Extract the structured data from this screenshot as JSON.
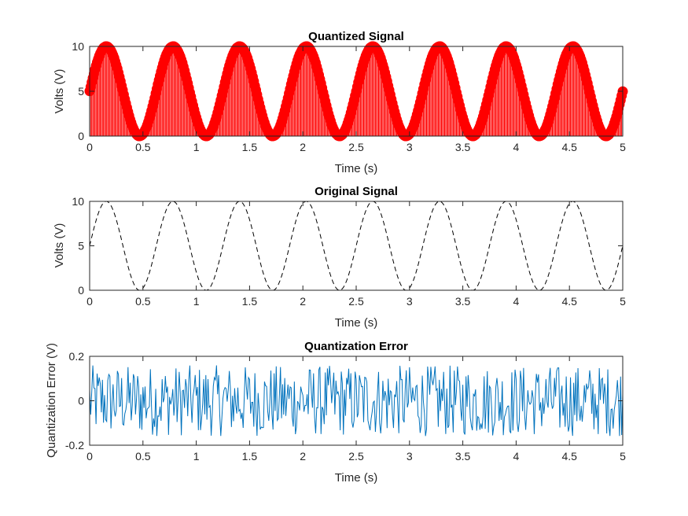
{
  "chart_data": [
    {
      "type": "stem",
      "title": "Quantized Signal",
      "xlabel": "Time (s)",
      "ylabel": "Volts (V)",
      "xlim": [
        0,
        5
      ],
      "ylim": [
        0,
        10
      ],
      "xticks": [
        "0",
        "0.5",
        "1",
        "1.5",
        "2",
        "2.5",
        "3",
        "3.5",
        "4",
        "4.5",
        "5"
      ],
      "yticks": [
        "0",
        "5",
        "10"
      ],
      "color": "#ff0000",
      "marker": "filled-circle",
      "signal": {
        "form": "5 + 5*sin(2*pi*f*t)",
        "frequency_hz": 1.6,
        "offset_v": 5,
        "amplitude_v": 5,
        "sample_rate_hz": 100,
        "quantization_levels": 256
      },
      "grid": false
    },
    {
      "type": "line",
      "title": "Original Signal",
      "xlabel": "Time (s)",
      "ylabel": "Volts (V)",
      "xlim": [
        0,
        5
      ],
      "ylim": [
        0,
        10
      ],
      "xticks": [
        "0",
        "0.5",
        "1",
        "1.5",
        "2",
        "2.5",
        "3",
        "3.5",
        "4",
        "4.5",
        "5"
      ],
      "yticks": [
        "0",
        "5",
        "10"
      ],
      "color": "#000000",
      "line_style": "dashed",
      "signal": {
        "form": "5 + 5*sin(2*pi*f*t)",
        "frequency_hz": 1.6,
        "offset_v": 5,
        "amplitude_v": 5
      },
      "grid": false
    },
    {
      "type": "line",
      "title": "Quantization Error",
      "xlabel": "Time (s)",
      "ylabel": "Quantization Error (V)",
      "xlim": [
        0,
        5
      ],
      "ylim": [
        -0.2,
        0.2
      ],
      "xticks": [
        "0",
        "0.5",
        "1",
        "1.5",
        "2",
        "2.5",
        "3",
        "3.5",
        "4",
        "4.5",
        "5"
      ],
      "yticks": [
        "-0.2",
        "0",
        "0.2"
      ],
      "color": "#0072bd",
      "signal": {
        "form": "noise",
        "range_v": [
          -0.16,
          0.16
        ],
        "sample_rate_hz": 100
      },
      "grid": false
    }
  ]
}
